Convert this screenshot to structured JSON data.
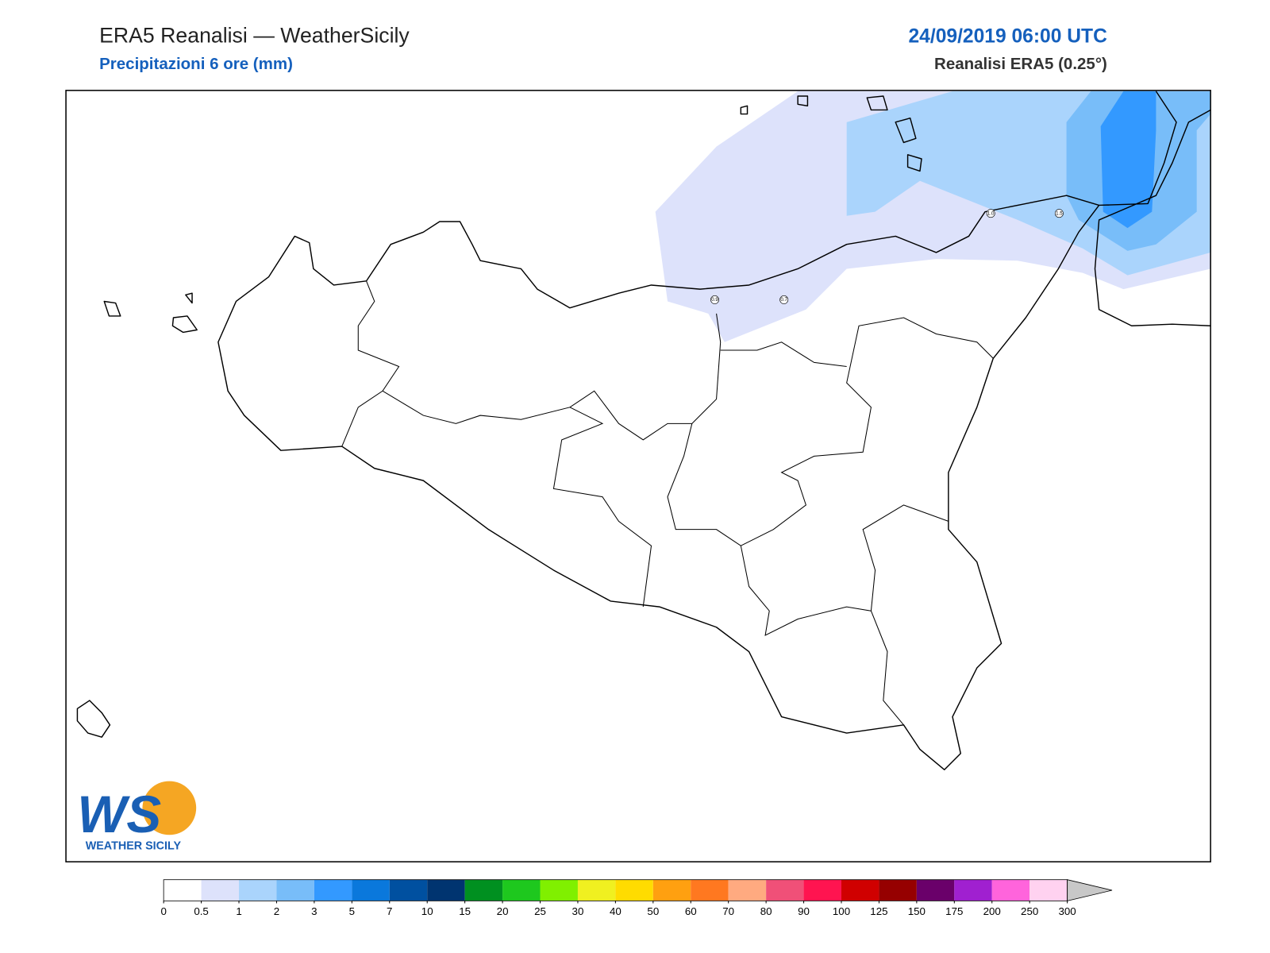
{
  "header": {
    "title": "ERA5 Reanalisi — WeatherSicily",
    "subtitle": "Precipitazioni 6 ore (mm)",
    "datetime": "24/09/2019 06:00 UTC",
    "source": "Reanalisi ERA5 (0.25°)"
  },
  "map": {
    "station_values": [
      0.9,
      0.7,
      {
        "value": 1,
        "label": "1.0"
      },
      1.5
    ],
    "colorbar": {
      "levels": [
        0,
        0.5,
        1,
        2,
        3,
        5,
        7,
        10,
        15,
        20,
        25,
        30,
        40,
        50,
        60,
        70,
        80,
        90,
        100,
        125,
        150,
        175,
        200,
        250,
        300
      ],
      "colors": [
        "#ffffff",
        "#dde2fb",
        "#aad4fc",
        "#78bdf9",
        "#3399ff",
        "#0a78dc",
        "#0050a0",
        "#003470",
        "#009020",
        "#1ec81e",
        "#80f000",
        "#f0f020",
        "#ffdc00",
        "#ffa010",
        "#ff7820",
        "#ffaa80",
        "#f05078",
        "#ff1450",
        "#d00000",
        "#960000",
        "#6a006a",
        "#a020d0",
        "#ff64dc",
        "#ffd2f0"
      ],
      "over_color": "#c8c8c8"
    }
  },
  "logo": {
    "mark": "WS",
    "text": "WEATHER SICILY"
  }
}
